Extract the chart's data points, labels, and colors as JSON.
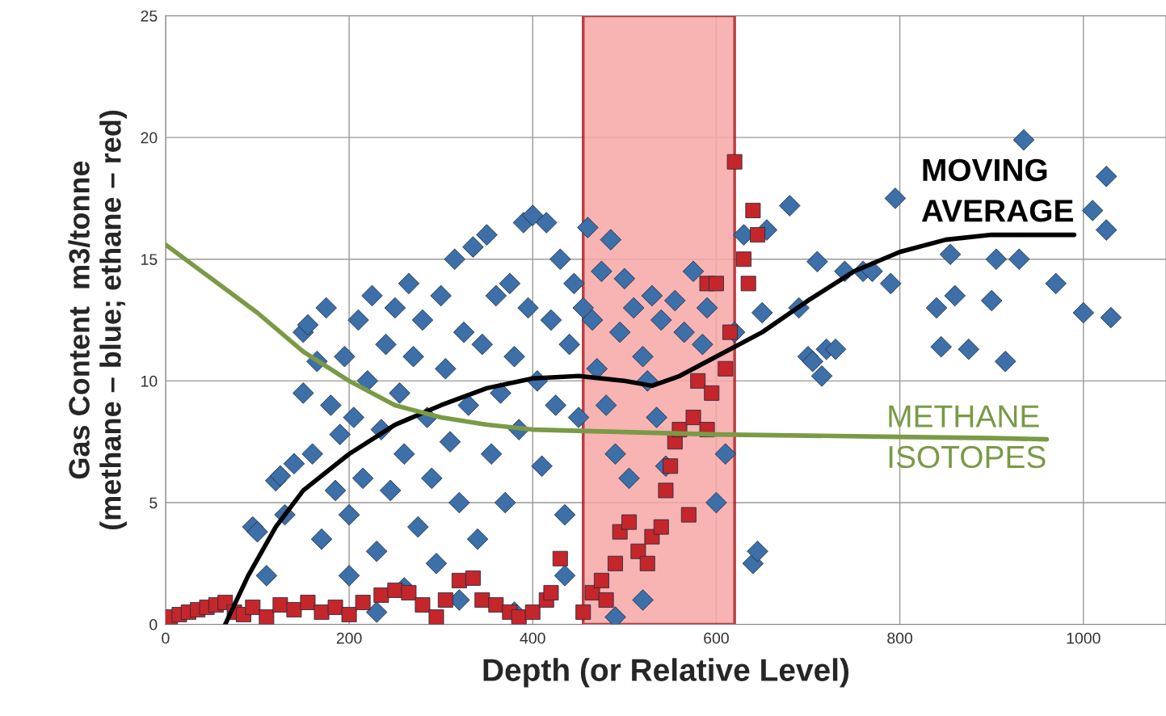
{
  "chart_data": {
    "type": "scatter",
    "xlabel": "Depth (or Relative Level)",
    "ylabel": "Gas Content  m3/tonne\n(methane – blue; ethane – red)",
    "xlim": [
      0,
      1090
    ],
    "xticks": [
      0,
      200,
      400,
      600,
      800,
      1000
    ],
    "ylim": [
      0,
      25
    ],
    "yticks": [
      0,
      5,
      10,
      15,
      20,
      25
    ],
    "grid": true,
    "bands": [
      {
        "axis": "x",
        "from": 455,
        "to": 620,
        "color": "#f7a6a6"
      }
    ],
    "series": [
      {
        "marker": "diamond",
        "color": "#3d6fa8",
        "x": [
          95,
          100,
          110,
          120,
          125,
          130,
          140,
          150,
          150,
          155,
          160,
          165,
          170,
          175,
          180,
          185,
          190,
          195,
          200,
          200,
          205,
          210,
          215,
          220,
          225,
          230,
          230,
          235,
          240,
          245,
          250,
          255,
          260,
          260,
          265,
          270,
          275,
          280,
          285,
          290,
          295,
          300,
          305,
          310,
          315,
          320,
          320,
          325,
          330,
          335,
          340,
          345,
          350,
          355,
          360,
          365,
          370,
          375,
          380,
          380,
          385,
          390,
          395,
          400,
          405,
          410,
          415,
          420,
          425,
          430,
          435,
          435,
          440,
          445,
          450,
          455,
          460,
          465,
          470,
          475,
          480,
          485,
          490,
          490,
          495,
          500,
          505,
          510,
          520,
          520,
          525,
          530,
          535,
          540,
          545,
          555,
          565,
          575,
          585,
          590,
          600,
          610,
          620,
          630,
          640,
          645,
          650,
          655,
          680,
          690,
          700,
          705,
          710,
          715,
          720,
          730,
          740,
          760,
          770,
          790,
          795,
          840,
          845,
          855,
          860,
          875,
          900,
          905,
          915,
          930,
          935,
          970,
          1000,
          1010,
          1025,
          1025,
          1030
        ],
        "values": [
          4.0,
          3.8,
          2.0,
          5.9,
          6.1,
          4.5,
          6.6,
          12.0,
          9.5,
          12.3,
          7.0,
          10.8,
          3.5,
          13.0,
          9.0,
          5.5,
          7.8,
          11.0,
          4.5,
          2.0,
          8.5,
          12.5,
          6.0,
          10.0,
          13.5,
          3.0,
          0.5,
          8.0,
          11.5,
          5.5,
          13.0,
          9.5,
          7.0,
          1.5,
          14.0,
          11.0,
          4.0,
          12.5,
          8.5,
          6.0,
          2.5,
          13.5,
          10.5,
          7.5,
          15.0,
          5.0,
          1.0,
          12.0,
          9.0,
          15.5,
          3.5,
          11.5,
          16.0,
          7.0,
          13.5,
          9.5,
          5.0,
          14.0,
          11.0,
          0.5,
          8.0,
          16.5,
          13.0,
          16.8,
          10.0,
          6.5,
          16.5,
          12.5,
          9.0,
          15.0,
          4.5,
          2.0,
          11.5,
          14.0,
          8.5,
          13.0,
          16.3,
          12.5,
          10.5,
          14.5,
          9.0,
          15.8,
          7.0,
          0.3,
          12.0,
          14.2,
          6.0,
          13.0,
          11.0,
          1.0,
          10.0,
          13.5,
          8.5,
          12.5,
          6.5,
          13.3,
          12.0,
          14.5,
          11.5,
          13.0,
          5.0,
          7.0,
          12.0,
          16.0,
          2.5,
          3.0,
          12.8,
          16.2,
          17.2,
          13.0,
          11.0,
          10.8,
          14.9,
          10.2,
          11.3,
          11.3,
          14.5,
          14.5,
          14.5,
          14.0,
          17.5,
          13.0,
          11.4,
          15.2,
          13.5,
          11.3,
          13.3,
          15.0,
          10.8,
          15.0,
          19.9,
          14.0,
          12.8,
          17.0,
          18.4,
          16.2,
          12.6
        ]
      },
      {
        "marker": "square",
        "color": "#c4262b",
        "x": [
          5,
          15,
          25,
          35,
          45,
          55,
          65,
          75,
          85,
          95,
          110,
          125,
          140,
          155,
          170,
          185,
          200,
          215,
          235,
          250,
          265,
          280,
          295,
          305,
          320,
          335,
          345,
          360,
          375,
          385,
          400,
          415,
          420,
          430,
          455,
          465,
          475,
          480,
          490,
          495,
          505,
          515,
          525,
          530,
          540,
          545,
          550,
          555,
          560,
          570,
          575,
          580,
          590,
          590,
          595,
          600,
          610,
          615,
          620,
          630,
          635,
          640,
          645
        ],
        "values": [
          0.3,
          0.4,
          0.5,
          0.6,
          0.7,
          0.8,
          0.9,
          0.5,
          0.4,
          0.7,
          0.3,
          0.8,
          0.6,
          0.9,
          0.5,
          0.7,
          0.4,
          0.9,
          1.2,
          1.4,
          1.3,
          0.8,
          0.3,
          1.0,
          1.8,
          1.9,
          1.0,
          0.8,
          0.5,
          0.3,
          0.5,
          1.0,
          1.3,
          2.7,
          0.5,
          1.3,
          1.8,
          1.0,
          2.5,
          3.8,
          4.2,
          3.0,
          2.5,
          3.6,
          4.0,
          5.5,
          6.5,
          7.5,
          8.0,
          4.5,
          8.5,
          10.0,
          8.0,
          14.0,
          9.5,
          14.0,
          10.5,
          12.0,
          19.0,
          15.0,
          14.0,
          17.0,
          16.0
        ]
      },
      {
        "type": "line",
        "name": "MOVING\nAVERAGE",
        "color": "#000000",
        "x": [
          65,
          90,
          120,
          150,
          200,
          250,
          300,
          350,
          400,
          450,
          500,
          530,
          560,
          600,
          650,
          700,
          750,
          800,
          850,
          900,
          950,
          990
        ],
        "values": [
          0,
          2.0,
          4.0,
          5.5,
          7.0,
          8.2,
          9.0,
          9.7,
          10.1,
          10.2,
          10.0,
          9.8,
          10.2,
          11.0,
          12.0,
          13.3,
          14.5,
          15.3,
          15.8,
          16.0,
          16.0,
          16.0
        ]
      },
      {
        "type": "line",
        "name": "METHANE\nISOTOPES",
        "color": "#7a9a45",
        "x": [
          0,
          50,
          100,
          150,
          200,
          250,
          300,
          350,
          400,
          450,
          500,
          600,
          700,
          800,
          900,
          960
        ],
        "values": [
          15.6,
          14.2,
          12.8,
          11.2,
          10.0,
          9.0,
          8.5,
          8.2,
          8.0,
          7.95,
          7.9,
          7.8,
          7.75,
          7.7,
          7.65,
          7.6
        ]
      }
    ]
  }
}
